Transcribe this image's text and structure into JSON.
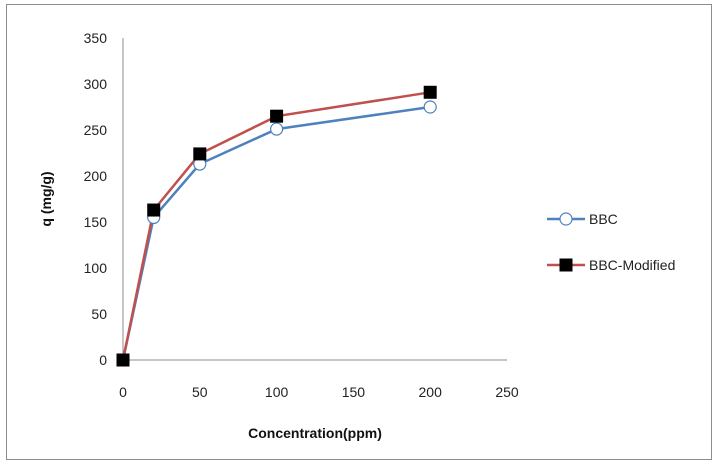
{
  "chart_data": {
    "type": "line",
    "title": "",
    "xlabel": "Concentration(ppm)",
    "ylabel": "q (mg/g)",
    "xlim": [
      0,
      250
    ],
    "ylim": [
      0,
      350
    ],
    "xticks": [
      0,
      50,
      100,
      150,
      200,
      250
    ],
    "yticks": [
      0,
      50,
      100,
      150,
      200,
      250,
      300,
      350
    ],
    "x_tick_labels": [
      "0",
      "50",
      "100",
      "150",
      "200",
      "250"
    ],
    "y_tick_labels": [
      "0",
      "50",
      "100",
      "150",
      "200",
      "250",
      "300",
      "350"
    ],
    "grid": false,
    "legend_position": "right",
    "x": [
      0,
      20,
      50,
      100,
      200
    ],
    "series": [
      {
        "name": "BBC",
        "values": [
          0,
          155,
          213,
          251,
          275
        ],
        "color": "#4f81bd",
        "marker": "open-circle"
      },
      {
        "name": "BBC-Modified",
        "values": [
          0,
          163,
          224,
          265,
          291
        ],
        "color": "#c0504d",
        "marker": "filled-square"
      }
    ]
  }
}
